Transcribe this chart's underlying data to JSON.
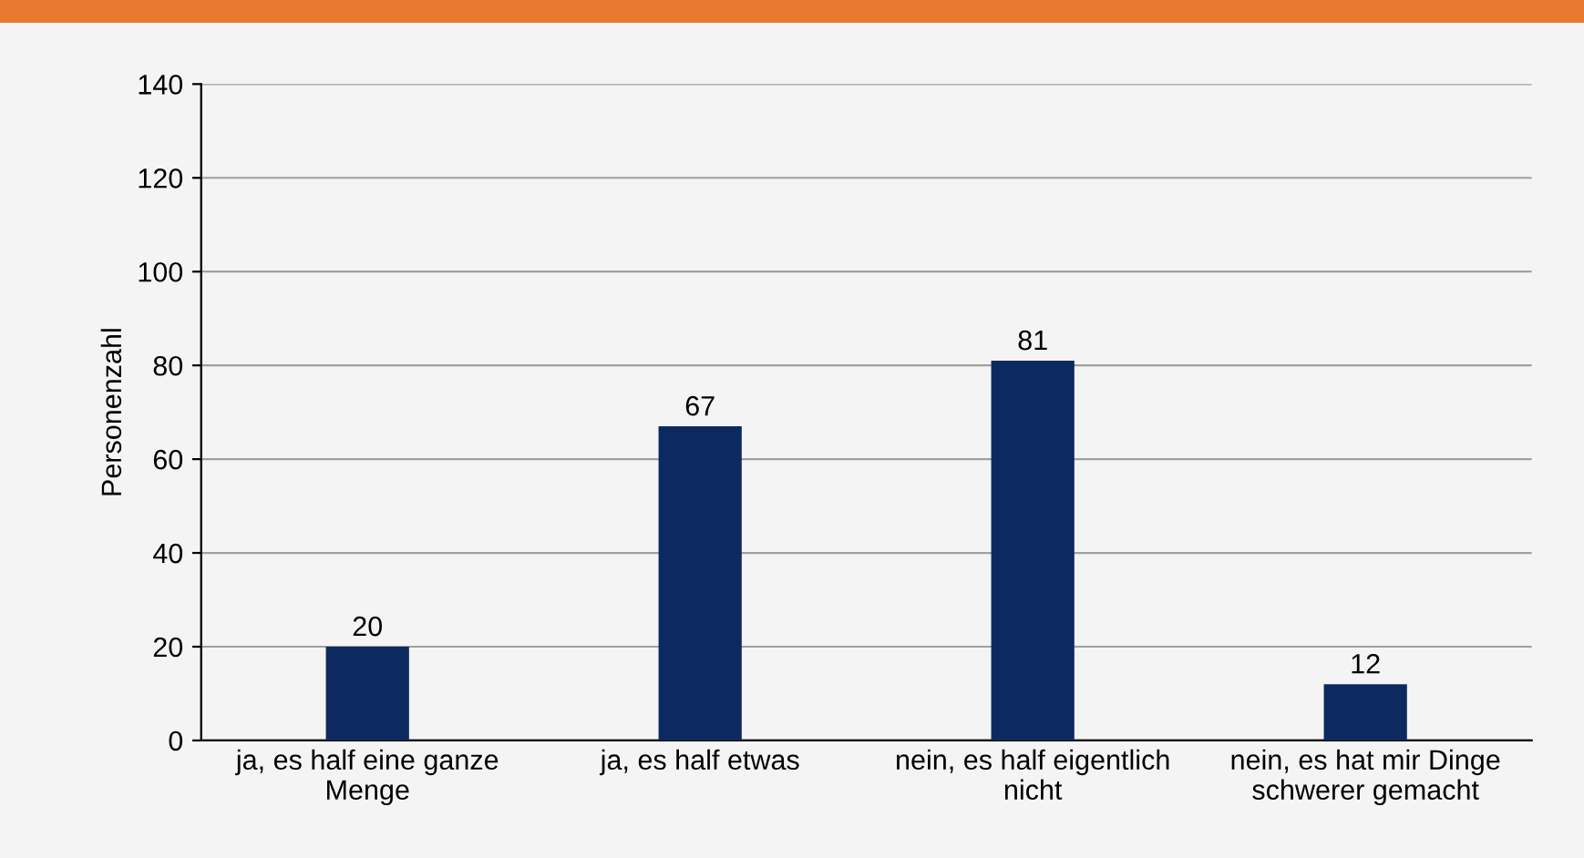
{
  "chart_data": {
    "type": "bar",
    "ylabel": "Personenzahl",
    "categories": [
      "ja, es half eine ganze\nMenge",
      "ja, es half etwas",
      "nein, es half eigentlich\nnicht",
      "nein, es hat mir Dinge\nschwerer gemacht"
    ],
    "values": [
      20,
      67,
      81,
      12
    ],
    "color": "#0c2a60",
    "data_labels": true,
    "ylim": [
      0,
      140
    ],
    "yticks": [
      0,
      20,
      40,
      60,
      80,
      100,
      120,
      140
    ],
    "grid": "y",
    "legend": false
  }
}
